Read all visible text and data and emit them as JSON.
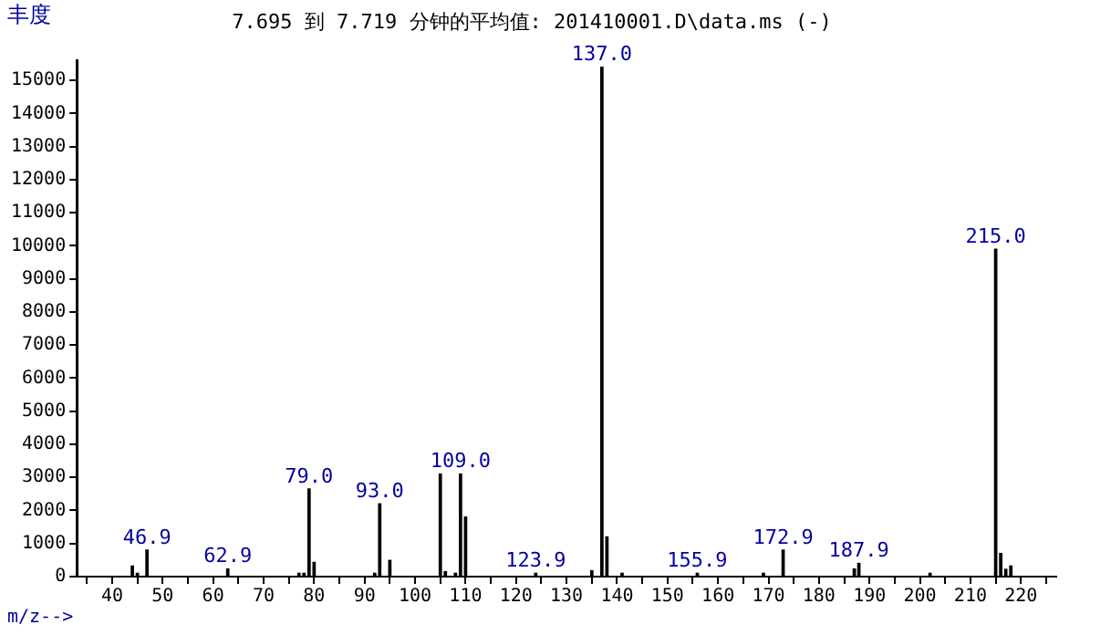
{
  "chart_data": {
    "type": "bar",
    "title": "7.695 到 7.719 分钟的平均值: 201410001.D\\data.ms (-)",
    "xlabel": "m/z-->",
    "ylabel": "丰度",
    "x": [
      44,
      45,
      46.9,
      62.9,
      77,
      78,
      79.0,
      80,
      92,
      93.0,
      95,
      105,
      106,
      108,
      109.0,
      110,
      123.9,
      135,
      137.0,
      138,
      141,
      155.9,
      169,
      172.9,
      187,
      187.9,
      202,
      215.0,
      216,
      217,
      218
    ],
    "values": [
      320,
      100,
      800,
      230,
      100,
      100,
      2650,
      430,
      100,
      2200,
      490,
      3100,
      150,
      100,
      3100,
      1800,
      100,
      180,
      15400,
      1200,
      100,
      100,
      100,
      800,
      230,
      400,
      100,
      9900,
      700,
      220,
      320
    ],
    "color": "#000000",
    "xlim": [
      33,
      227
    ],
    "xticks": [
      {
        "value": 35,
        "label": null
      },
      40,
      {
        "value": 45,
        "label": null
      },
      50,
      {
        "value": 55,
        "label": null
      },
      60,
      {
        "value": 65,
        "label": null
      },
      70,
      {
        "value": 75,
        "label": null
      },
      80,
      {
        "value": 85,
        "label": null
      },
      90,
      {
        "value": 95,
        "label": null
      },
      100,
      {
        "value": 105,
        "label": null
      },
      110,
      {
        "value": 115,
        "label": null
      },
      120,
      {
        "value": 125,
        "label": null
      },
      130,
      {
        "value": 135,
        "label": null
      },
      140,
      {
        "value": 145,
        "label": null
      },
      150,
      {
        "value": 155,
        "label": null
      },
      160,
      {
        "value": 165,
        "label": null
      },
      170,
      {
        "value": 175,
        "label": null
      },
      180,
      {
        "value": 185,
        "label": null
      },
      190,
      {
        "value": 195,
        "label": null
      },
      200,
      {
        "value": 205,
        "label": null
      },
      210,
      {
        "value": 215,
        "label": null
      },
      220,
      {
        "value": 225,
        "label": null
      }
    ],
    "ylim": [
      0,
      15600
    ],
    "yticks": [
      0,
      1000,
      2000,
      3000,
      4000,
      5000,
      6000,
      7000,
      8000,
      9000,
      10000,
      11000,
      12000,
      13000,
      14000,
      15000
    ],
    "annotations": [
      {
        "text": "46.9",
        "x": 46.9,
        "y": 800
      },
      {
        "text": "62.9",
        "x": 62.9,
        "y": 230
      },
      {
        "text": "79.0",
        "x": 79.0,
        "y": 2650
      },
      {
        "text": "93.0",
        "x": 93.0,
        "y": 2200
      },
      {
        "text": "109.0",
        "x": 109.0,
        "y": 3100
      },
      {
        "text": "123.9",
        "x": 123.9,
        "y": 100
      },
      {
        "text": "137.0",
        "x": 137.0,
        "y": 15400
      },
      {
        "text": "155.9",
        "x": 155.9,
        "y": 100
      },
      {
        "text": "172.9",
        "x": 172.9,
        "y": 800
      },
      {
        "text": "187.9",
        "x": 187.9,
        "y": 400
      },
      {
        "text": "215.0",
        "x": 215.0,
        "y": 9900
      }
    ],
    "grid": false,
    "legend": false
  }
}
